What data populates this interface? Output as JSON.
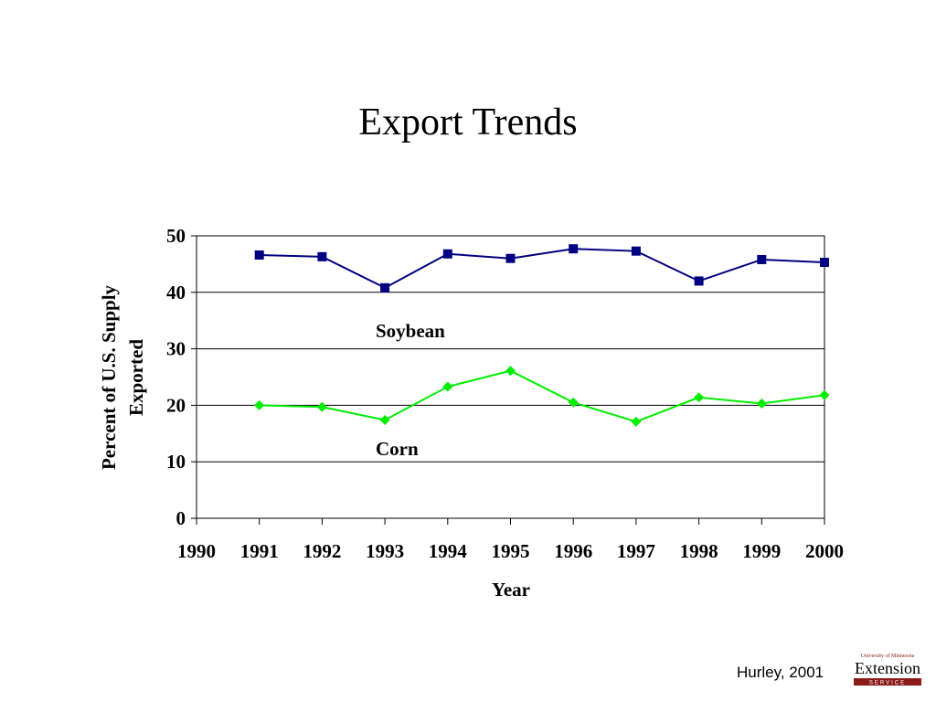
{
  "slide": {
    "title": "Export Trends",
    "credit": "Hurley, 2001",
    "logo": {
      "top_line": "University of Minnesota",
      "main": "Extension",
      "bottom_line": "SERVICE"
    }
  },
  "colors": {
    "soybean": "#000080",
    "corn": "#00ee00",
    "logo_red": "#8b1a1a"
  },
  "chart_data": {
    "type": "line",
    "title": "",
    "xlabel": "Year",
    "ylabel": [
      "Percent of U.S. Supply",
      "Exported"
    ],
    "x_ticks": [
      1990,
      1991,
      1992,
      1993,
      1994,
      1995,
      1996,
      1997,
      1998,
      1999,
      2000
    ],
    "xlim": [
      1990,
      2000
    ],
    "ylim": [
      0,
      50
    ],
    "y_ticks": [
      0,
      10,
      20,
      30,
      40,
      50
    ],
    "grid": "horizontal",
    "series": [
      {
        "name": "Soybean",
        "marker": "square",
        "x": [
          1991,
          1992,
          1993,
          1994,
          1995,
          1996,
          1997,
          1998,
          1999,
          2000
        ],
        "values": [
          46.6,
          46.3,
          40.8,
          46.8,
          46.0,
          47.7,
          47.3,
          42.0,
          45.8,
          45.3
        ]
      },
      {
        "name": "Corn",
        "marker": "diamond",
        "x": [
          1991,
          1992,
          1993,
          1994,
          1995,
          1996,
          1997,
          1998,
          1999,
          2000
        ],
        "values": [
          20.0,
          19.7,
          17.4,
          23.3,
          26.1,
          20.5,
          17.1,
          21.4,
          20.3,
          21.8
        ]
      }
    ]
  }
}
